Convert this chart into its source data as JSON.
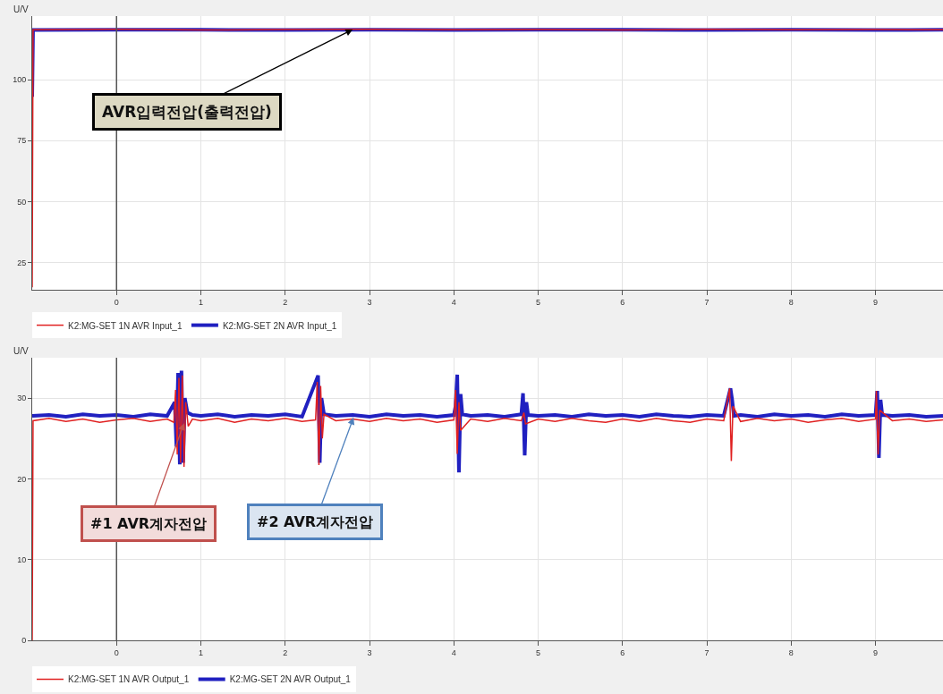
{
  "chart_data": [
    {
      "type": "line",
      "ylabel": "U/V",
      "xlim": [
        -1,
        9.8
      ],
      "ylim": [
        14,
        126
      ],
      "xticks": [
        0,
        1,
        2,
        3,
        4,
        5,
        6,
        7,
        8,
        9
      ],
      "yticks": [
        25,
        50,
        75,
        100
      ],
      "grid": true,
      "legend": "bottom",
      "marker": "none",
      "line_style": "solid",
      "ref_lines": [
        {
          "axis": "x",
          "value": 0,
          "color": "#555555"
        }
      ],
      "annotations": [
        {
          "text": "AVR입력전압(출력전압)",
          "x": 2.8,
          "y": 120.5
        }
      ],
      "series": [
        {
          "name": "K2:MG-SET 1N AVR Input_1",
          "color": "#e02020",
          "x": [
            -1,
            -0.99,
            0,
            1,
            2,
            3,
            4,
            5,
            6,
            7,
            8,
            9,
            9.8
          ],
          "values": [
            15,
            120.4,
            120.6,
            120.3,
            120.5,
            120.6,
            120.4,
            120.5,
            120.3,
            120.6,
            120.4,
            120.5,
            120.4
          ]
        },
        {
          "name": "K2:MG-SET 2N AVR Input_1",
          "color": "#2020c0",
          "x": [
            -1,
            -0.99,
            0,
            1,
            2,
            3,
            4,
            5,
            6,
            7,
            8,
            9,
            9.8
          ],
          "values": [
            93,
            120.3,
            120.4,
            120.4,
            120.3,
            120.4,
            120.3,
            120.4,
            120.4,
            120.3,
            120.4,
            120.3,
            120.4
          ]
        }
      ]
    },
    {
      "type": "line",
      "ylabel": "U/V",
      "xlim": [
        -1,
        9.8
      ],
      "ylim": [
        0,
        35
      ],
      "xticks": [
        0,
        1,
        2,
        3,
        4,
        5,
        6,
        7,
        8,
        9
      ],
      "yticks": [
        0,
        10,
        20,
        30
      ],
      "grid": true,
      "legend": "bottom",
      "marker": "none",
      "line_style": "solid",
      "ref_lines": [
        {
          "axis": "x",
          "value": 0,
          "color": "#555555"
        }
      ],
      "annotations": [
        {
          "text": "#1 AVR계자전압",
          "x": 0.8,
          "y": 26.9
        },
        {
          "text": "#2 AVR계자전압",
          "x": 2.81,
          "y": 27.6
        }
      ],
      "series": [
        {
          "name": "K2:MG-SET 1N AVR Output_1",
          "color": "#e02020",
          "x": [
            -1,
            -0.99,
            -0.8,
            -0.6,
            -0.4,
            -0.2,
            0,
            0.2,
            0.4,
            0.6,
            0.68,
            0.7,
            0.72,
            0.74,
            0.76,
            0.78,
            0.8,
            0.82,
            0.85,
            0.9,
            1,
            1.2,
            1.4,
            1.6,
            1.8,
            2,
            2.2,
            2.36,
            2.38,
            2.4,
            2.42,
            2.44,
            2.46,
            2.6,
            2.8,
            3,
            3.2,
            3.4,
            3.6,
            3.8,
            4,
            4.02,
            4.04,
            4.06,
            4.08,
            4.2,
            4.4,
            4.6,
            4.8,
            4.83,
            4.85,
            5,
            5.2,
            5.4,
            5.6,
            5.8,
            6,
            6.2,
            6.4,
            6.6,
            6.8,
            7,
            7.2,
            7.27,
            7.29,
            7.31,
            7.4,
            7.6,
            7.8,
            8,
            8.2,
            8.4,
            8.6,
            8.8,
            9,
            9.01,
            9.03,
            9.05,
            9.2,
            9.4,
            9.6,
            9.8
          ],
          "values": [
            0,
            27.2,
            27.5,
            27.1,
            27.4,
            27.0,
            27.3,
            27.5,
            27.1,
            27.4,
            27,
            31,
            23,
            32.5,
            22,
            32.8,
            21.5,
            29.5,
            26.5,
            27.4,
            27.2,
            27.5,
            27.0,
            27.4,
            27.2,
            27.5,
            27.1,
            27.3,
            32,
            21.7,
            31.5,
            25,
            28,
            27.2,
            27.4,
            27.1,
            27.5,
            27.2,
            27.4,
            27.0,
            27.3,
            31,
            23.1,
            29.5,
            26,
            27.4,
            27.1,
            27.5,
            27.2,
            28.2,
            26.8,
            27.4,
            27.1,
            27.5,
            27.2,
            27.0,
            27.4,
            27.1,
            27.5,
            27.2,
            27.0,
            27.4,
            27.2,
            31.2,
            22.2,
            29,
            27.1,
            27.5,
            27.2,
            27.4,
            27.0,
            27.3,
            27.5,
            27.1,
            27.4,
            30.9,
            23,
            28.5,
            27.2,
            27.4,
            27.1,
            27.3
          ]
        },
        {
          "name": "K2:MG-SET 2N AVR Output_1",
          "color": "#2020c0",
          "x": [
            -1,
            -0.8,
            -0.6,
            -0.4,
            -0.2,
            0,
            0.2,
            0.4,
            0.6,
            0.69,
            0.71,
            0.73,
            0.75,
            0.77,
            0.79,
            0.81,
            0.84,
            0.9,
            1,
            1.2,
            1.4,
            1.6,
            1.8,
            2,
            2.2,
            2.39,
            2.41,
            2.43,
            2.46,
            2.6,
            2.8,
            3,
            3.2,
            3.4,
            3.6,
            3.8,
            4,
            4.02,
            4.04,
            4.06,
            4.08,
            4.1,
            4.2,
            4.4,
            4.6,
            4.8,
            4.82,
            4.84,
            4.86,
            4.88,
            5,
            5.2,
            5.4,
            5.6,
            5.8,
            6,
            6.2,
            6.4,
            6.6,
            6.8,
            7,
            7.2,
            7.28,
            7.3,
            7.32,
            7.4,
            7.6,
            7.8,
            8,
            8.2,
            8.4,
            8.6,
            8.8,
            9,
            9.02,
            9.04,
            9.06,
            9.08,
            9.2,
            9.4,
            9.6,
            9.8
          ],
          "values": [
            27.8,
            27.9,
            27.7,
            28.0,
            27.8,
            27.9,
            27.7,
            28.0,
            27.8,
            29.5,
            24,
            33.1,
            21.8,
            33.4,
            22,
            30,
            28.2,
            27.9,
            27.8,
            28.0,
            27.7,
            27.9,
            27.8,
            28.0,
            27.7,
            32.8,
            22,
            30,
            28,
            27.8,
            27.9,
            27.7,
            28.0,
            27.8,
            27.9,
            27.7,
            27.9,
            29,
            32.9,
            20.8,
            30.5,
            28,
            27.8,
            27.9,
            27.7,
            28.0,
            30.6,
            22.9,
            29.5,
            27.9,
            27.8,
            27.9,
            27.7,
            28.0,
            27.8,
            27.9,
            27.7,
            28.0,
            27.8,
            27.7,
            27.9,
            27.8,
            31.2,
            29.8,
            27.8,
            27.9,
            27.7,
            28.0,
            27.8,
            27.9,
            27.7,
            28.0,
            27.8,
            27.9,
            30.9,
            22.6,
            29.8,
            27.9,
            27.8,
            27.9,
            27.7,
            27.8
          ]
        }
      ]
    }
  ]
}
